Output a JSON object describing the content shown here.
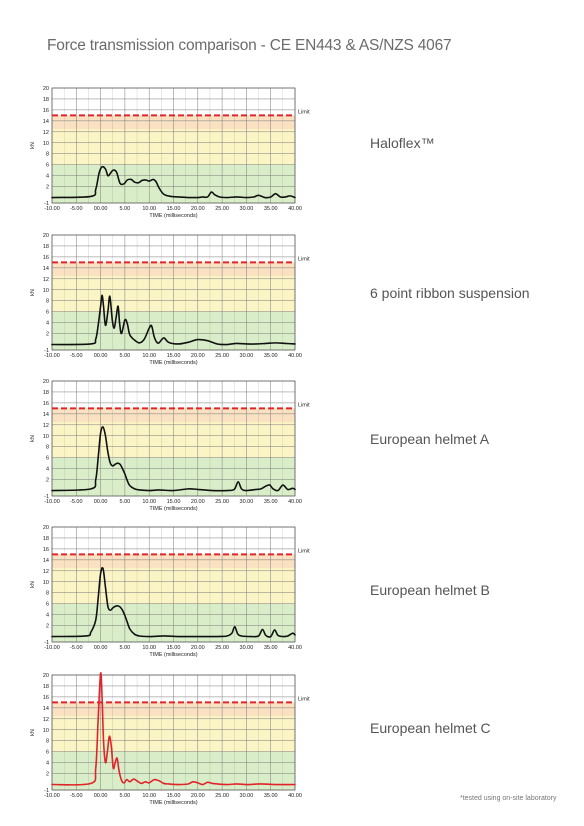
{
  "page": {
    "title": "Force transmission comparison - CE EN443 & AS/NZS 4067",
    "footnote": "*tested using on-site laboratory"
  },
  "colors": {
    "zone_red": "#f7cfc0",
    "zone_yellow": "#fbf5c6",
    "zone_green": "#d9eec8",
    "grid": "#7a7a7a",
    "limit_line": "#e0242b",
    "curve_black": "#111111",
    "curve_red": "#e0242b"
  },
  "chart_data": [
    {
      "type": "line",
      "label": "Haloflex™",
      "xlabel": "TIME (milliseconds)",
      "ylabel": "kN",
      "xlim": [
        -10,
        40
      ],
      "ylim": [
        -1,
        20
      ],
      "x_ticks": [
        "-10.00",
        "-5.00",
        "00.00",
        "5.00",
        "10.00",
        "15.00",
        "20.00",
        "25.00",
        "30.00",
        "35.00",
        "40.00"
      ],
      "y_ticks": [
        "-1",
        "2",
        "4",
        "6",
        "8",
        "10",
        "12",
        "14",
        "16",
        "18",
        "20"
      ],
      "limit": 15,
      "limit_label": "Limit",
      "grid": true,
      "color": "black",
      "x": [
        -10,
        -2,
        -1,
        -0.3,
        0.3,
        1,
        1.5,
        2,
        2.6,
        3.3,
        4,
        4.8,
        5.5,
        6.3,
        7,
        7.8,
        8.5,
        9.3,
        10,
        10.8,
        11.4,
        12,
        13,
        14.5,
        16,
        18,
        20,
        21,
        22,
        22.8,
        23.5,
        24.5,
        26,
        28,
        30,
        31.5,
        32.5,
        33.8,
        35,
        36,
        37,
        38,
        39,
        40
      ],
      "y": [
        0,
        0.2,
        1.5,
        4.5,
        5.6,
        5.2,
        4.0,
        4.4,
        5.0,
        4.6,
        2.6,
        2.5,
        3.2,
        3.3,
        2.8,
        2.7,
        3.1,
        3.2,
        3.0,
        3.3,
        2.9,
        1.8,
        0.6,
        0.2,
        0.1,
        0.0,
        0.0,
        0.1,
        0.1,
        1.0,
        0.5,
        0.1,
        0.0,
        0.1,
        0.0,
        0.1,
        0.4,
        0.0,
        0.1,
        0.7,
        0.1,
        0.1,
        0.3,
        0.0
      ]
    },
    {
      "type": "line",
      "label": "6 point ribbon suspension",
      "xlabel": "TIME (milliseconds)",
      "ylabel": "kN",
      "xlim": [
        -10,
        40
      ],
      "ylim": [
        -1,
        20
      ],
      "x_ticks": [
        "-10.00",
        "-5.00",
        "00.00",
        "5.00",
        "10.00",
        "15.00",
        "20.00",
        "25.00",
        "30.00",
        "35.00",
        "40.00"
      ],
      "y_ticks": [
        "-1",
        "2",
        "4",
        "6",
        "8",
        "10",
        "12",
        "14",
        "16",
        "18",
        "20"
      ],
      "limit": 15,
      "limit_label": "Limit",
      "grid": true,
      "color": "black",
      "x": [
        -10,
        -2,
        -1,
        -0.5,
        0,
        0.3,
        0.6,
        1,
        1.5,
        1.9,
        2.4,
        2.8,
        3.2,
        3.6,
        3.9,
        4.3,
        5,
        5.5,
        6,
        7,
        8,
        9,
        10,
        10.5,
        11,
        11.5,
        12,
        13,
        14,
        16,
        18,
        20,
        22,
        24,
        26,
        28,
        30,
        32,
        34,
        36,
        38,
        40
      ],
      "y": [
        0,
        0.1,
        1.0,
        3.5,
        7.0,
        9.0,
        7.0,
        3.5,
        6.0,
        8.8,
        4.5,
        3.0,
        5.0,
        7.0,
        4.0,
        2.0,
        4.5,
        3.8,
        1.8,
        0.8,
        0.3,
        1.0,
        3.0,
        3.4,
        1.5,
        0.5,
        0.3,
        1.2,
        0.4,
        0.1,
        0.4,
        0.9,
        0.7,
        0.1,
        0.0,
        0.2,
        0.1,
        0.1,
        0.2,
        0.3,
        0.2,
        0.1
      ]
    },
    {
      "type": "line",
      "label": "European helmet A",
      "xlabel": "TIME (milliseconds)",
      "ylabel": "kN",
      "xlim": [
        -10,
        40
      ],
      "ylim": [
        -1,
        20
      ],
      "x_ticks": [
        "-10.00",
        "-5.00",
        "00.00",
        "5.00",
        "10.00",
        "15.00",
        "20.00",
        "25.00",
        "30.00",
        "35.00",
        "40.00"
      ],
      "y_ticks": [
        "-1",
        "2",
        "4",
        "6",
        "8",
        "10",
        "12",
        "14",
        "16",
        "18",
        "20"
      ],
      "limit": 15,
      "limit_label": "Limit",
      "grid": true,
      "color": "black",
      "x": [
        -10,
        -2,
        -1,
        -0.5,
        0,
        0.5,
        1,
        1.5,
        2,
        2.5,
        3,
        3.5,
        4,
        4.5,
        5,
        5.5,
        6,
        7,
        8,
        10,
        12,
        15,
        18,
        20,
        23,
        26,
        27.5,
        28.3,
        29,
        30,
        32,
        33,
        34,
        34.8,
        35.5,
        36.5,
        37.5,
        38.5,
        39.5,
        40
      ],
      "y": [
        0,
        0.3,
        2.0,
        6.0,
        10.5,
        11.6,
        10.0,
        7.0,
        5.0,
        4.5,
        4.8,
        5.0,
        4.8,
        4.0,
        3.0,
        1.8,
        0.9,
        0.3,
        0.1,
        0.0,
        0.1,
        0.0,
        0.3,
        0.2,
        0.0,
        0.0,
        0.2,
        1.6,
        0.3,
        0.0,
        0.2,
        0.3,
        0.8,
        1.0,
        0.3,
        0.0,
        1.0,
        0.2,
        0.4,
        0.2
      ]
    },
    {
      "type": "line",
      "label": "European helmet B",
      "xlabel": "TIME (milliseconds)",
      "ylabel": "kN",
      "xlim": [
        -10,
        40
      ],
      "ylim": [
        -1,
        20
      ],
      "x_ticks": [
        "-10.00",
        "-5.00",
        "00.00",
        "5.00",
        "10.00",
        "15.00",
        "20.00",
        "25.00",
        "30.00",
        "35.00",
        "40.00"
      ],
      "y_ticks": [
        "-1",
        "2",
        "4",
        "6",
        "8",
        "10",
        "12",
        "14",
        "16",
        "18",
        "20"
      ],
      "limit": 15,
      "limit_label": "Limit",
      "grid": true,
      "color": "black",
      "x": [
        -10,
        -3,
        -2,
        -1,
        -0.5,
        0,
        0.5,
        1,
        1.5,
        2,
        2.5,
        3,
        3.5,
        4,
        4.5,
        5,
        5.5,
        6,
        7,
        8,
        10,
        13,
        16,
        20,
        24,
        26,
        27,
        27.6,
        28.2,
        29,
        31,
        32.5,
        33.3,
        34,
        35,
        35.8,
        36.5,
        37.5,
        38.5,
        39.5,
        40
      ],
      "y": [
        0,
        0.1,
        0.8,
        3.0,
        7.0,
        11.5,
        12.4,
        9.0,
        5.5,
        4.8,
        5.2,
        5.5,
        5.6,
        5.4,
        4.8,
        3.8,
        2.6,
        1.4,
        0.4,
        0.1,
        0.0,
        0.1,
        0.0,
        0.0,
        0.0,
        0.1,
        0.6,
        1.8,
        0.5,
        0.1,
        0.0,
        0.1,
        1.3,
        0.2,
        0.0,
        1.2,
        0.2,
        0.0,
        0.1,
        0.6,
        0.3
      ]
    },
    {
      "type": "line",
      "label": "European helmet C",
      "xlabel": "TIME (milliseconds)",
      "ylabel": "kN",
      "xlim": [
        -10,
        40
      ],
      "ylim": [
        -1,
        20
      ],
      "x_ticks": [
        "-10.00",
        "-5.00",
        "00.00",
        "5.00",
        "10.00",
        "15.00",
        "20.00",
        "25.00",
        "30.00",
        "35.00",
        "40.00"
      ],
      "y_ticks": [
        "-1",
        "2",
        "4",
        "6",
        "8",
        "10",
        "12",
        "14",
        "16",
        "18",
        "20"
      ],
      "limit": 15,
      "limit_label": "Limit",
      "grid": true,
      "color": "red",
      "x": [
        -10,
        -2,
        -1,
        -0.5,
        0,
        0.3,
        0.6,
        1,
        1.4,
        1.8,
        2.2,
        2.6,
        3,
        3.4,
        3.8,
        4.3,
        4.8,
        5.4,
        6,
        6.8,
        7.6,
        8.4,
        9.2,
        10,
        11,
        12,
        13,
        14,
        16,
        18,
        19,
        20,
        21,
        22,
        23,
        24,
        26,
        28,
        30,
        33,
        36,
        40
      ],
      "y": [
        0,
        0.2,
        3.0,
        12.0,
        20.3,
        16.0,
        8.0,
        4.0,
        6.0,
        8.8,
        7.0,
        3.0,
        4.0,
        4.8,
        2.5,
        0.8,
        0.3,
        0.9,
        0.5,
        1.0,
        0.6,
        0.2,
        0.5,
        0.3,
        0.9,
        0.7,
        0.2,
        0.1,
        0.0,
        0.1,
        0.5,
        0.3,
        0.0,
        0.4,
        0.2,
        0.1,
        0.0,
        0.1,
        0.0,
        0.1,
        0.0,
        0.0
      ]
    }
  ]
}
